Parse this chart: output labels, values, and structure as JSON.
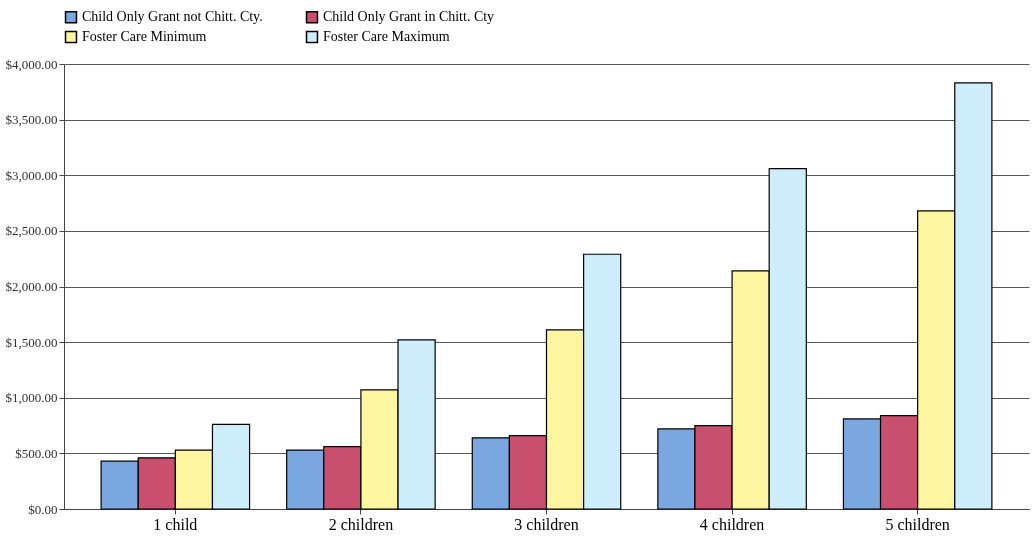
{
  "chart_data": {
    "type": "bar",
    "categories": [
      "1 child",
      "2 children",
      "3 children",
      "4 children",
      "5 children"
    ],
    "series": [
      {
        "name": "Child Only Grant not Chitt. Cty.",
        "color": "#7aa7e0",
        "values": [
          430,
          530,
          640,
          720,
          810
        ]
      },
      {
        "name": "Child Only Grant in Chitt. Cty",
        "color": "#c8506e",
        "values": [
          460,
          560,
          660,
          750,
          840
        ]
      },
      {
        "name": "Foster Care Minimum",
        "color": "#fdf5a0",
        "values": [
          530,
          1070,
          1610,
          2140,
          2680
        ]
      },
      {
        "name": "Foster Care Maximum",
        "color": "#cdeefa",
        "values": [
          760,
          1520,
          2290,
          3060,
          3830
        ]
      }
    ],
    "ylim": [
      0,
      4000
    ],
    "yticks": [
      {
        "value": 0,
        "label": "$0.00"
      },
      {
        "value": 500,
        "label": "$500.00"
      },
      {
        "value": 1000,
        "label": "$1,000.00"
      },
      {
        "value": 1500,
        "label": "$1,500.00"
      },
      {
        "value": 2000,
        "label": "$2,000.00"
      },
      {
        "value": 2500,
        "label": "$2,500.00"
      },
      {
        "value": 3000,
        "label": "$3,000.00"
      },
      {
        "value": 3500,
        "label": "$3,500.00"
      },
      {
        "value": 4000,
        "label": "$4,000.00"
      }
    ],
    "grid": "y",
    "legend": "top"
  }
}
